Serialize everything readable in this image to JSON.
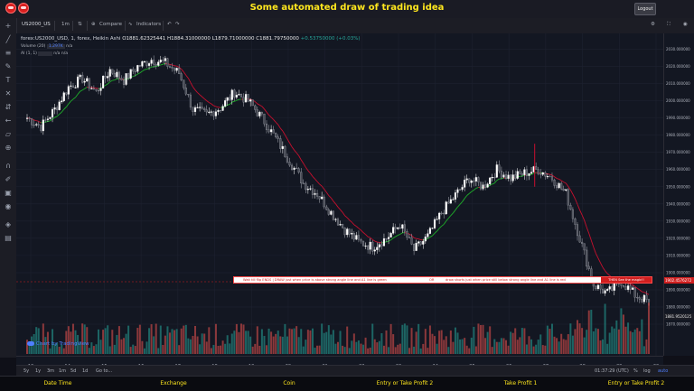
{
  "app": {
    "title": "Some automated draw of trading idea",
    "logout_label": "Logout"
  },
  "toolbar": {
    "symbol": "US2000_US",
    "interval": "1m",
    "compare_label": "Compare",
    "indicators_label": "Indicators"
  },
  "legend": {
    "main": "forex:US2000_USD, 1, forex, Heikin Ashi",
    "open": "O1881.62325441",
    "high": "H1884.31000000",
    "low": "L1879.71000000",
    "close": "C1881.79750000",
    "change": "+0.53750000 (+0.03%)",
    "volume_label": "Volume (20)",
    "volume_value": "1.297K",
    "volume_na": "n/a",
    "ai_label": "AI (1, 1)",
    "ai_na1": "n/a",
    "ai_na2": "n/a"
  },
  "banner": {
    "text_left": "Wait till flip ENDS   |   DRAW just when   price is above strong angle line and A1 line is green",
    "or_label": "OR",
    "text_right": "draw shorts just when price still below strong angle line and A1 line is red",
    "magic_label": "THEN See the magic!!"
  },
  "watermark": "Chart by TradingView",
  "price_scale": {
    "labels": [
      "2030.000000",
      "2020.000000",
      "2010.000000",
      "2000.000000",
      "1990.000000",
      "1980.000000",
      "1970.000000",
      "1960.000000",
      "1950.000000",
      "1940.000000",
      "1930.000000",
      "1920.000000",
      "1910.000000",
      "1900.000000",
      "1890.000000",
      "1880.000000",
      "1870.000000"
    ],
    "tag_banner": "1902.4576272",
    "tag_price": "1881.9520125",
    "tag_low": "1880.000000"
  },
  "time_scale": {
    "labels": [
      "13",
      "14",
      "15",
      "16",
      "17",
      "18",
      "19",
      "20",
      "21",
      "22",
      "23",
      "24",
      "25",
      "26",
      "27",
      "28",
      "29",
      "30"
    ]
  },
  "bottom_bar": {
    "ranges": [
      "5y",
      "1y",
      "3m",
      "1m",
      "5d",
      "1d"
    ],
    "goto_label": "Go to...",
    "clock": "01:37:29 (UTC)",
    "percent_label": "%",
    "log_label": "log",
    "auto_label": "auto"
  },
  "footer": {
    "items": [
      "Date Time",
      "Exchange",
      "Coin",
      "Entry or Take Profit 2",
      "Take Profit 1",
      "Entry or Take Profit 2"
    ]
  },
  "colors": {
    "accent_yellow": "#ffe71e",
    "bull": "#26a69a",
    "bear": "#ef5350",
    "ema_green": "#1fae2a",
    "ema_red": "#c8102e",
    "candle_white": "#ffffff"
  },
  "chart_data": {
    "type": "line",
    "title": "",
    "xlabel": "",
    "ylabel": "",
    "x": [
      "13",
      "13.5",
      "14",
      "14.5",
      "15",
      "15.5",
      "16",
      "16.5",
      "17",
      "17.3",
      "17.6",
      "18",
      "18.5",
      "19",
      "19.3",
      "19.6",
      "20",
      "20.3",
      "20.6",
      "21",
      "21.3",
      "21.6",
      "22",
      "22.5",
      "23",
      "23.5",
      "24",
      "24.5",
      "25",
      "25.3",
      "25.6",
      "26",
      "26.3",
      "26.6",
      "27",
      "27.2",
      "27.4",
      "27.6",
      "28",
      "28.3",
      "28.6",
      "29",
      "29.3",
      "29.6",
      "30",
      "30.2"
    ],
    "series": [
      {
        "values": [
          1990,
          1985,
          1995,
          2008,
          2013,
          2005,
          2018,
          2012,
          2020,
          2024,
          2022,
          2016,
          1995,
          1992,
          1996,
          2005,
          2000,
          1990,
          1978,
          1965,
          1952,
          1946,
          1935,
          1925,
          1918,
          1915,
          1920,
          1928,
          1913,
          1921,
          1935,
          1945,
          1955,
          1950,
          1960,
          1955,
          1958,
          1960,
          1955,
          1946,
          1920,
          1893,
          1888,
          1895,
          1887,
          1883
        ]
      }
    ],
    "ylim": [
      1870,
      2035
    ],
    "grid": true
  }
}
